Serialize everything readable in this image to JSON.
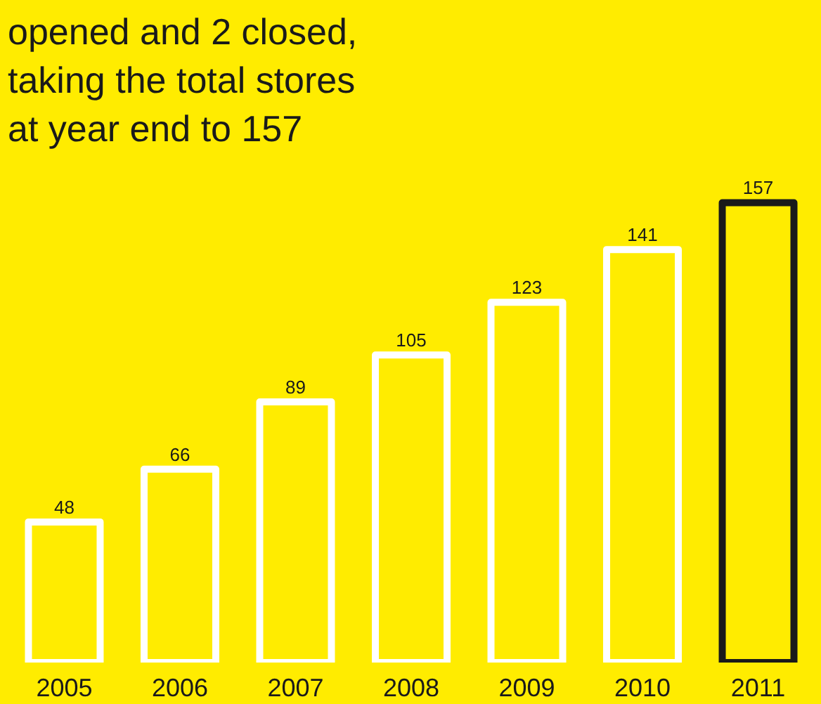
{
  "chart_data": {
    "type": "bar",
    "title": "opened and 2 closed, taking the total stores at year end to 157",
    "categories": [
      "2005",
      "2006",
      "2007",
      "2008",
      "2009",
      "2010",
      "2011"
    ],
    "values": [
      48,
      66,
      89,
      105,
      123,
      141,
      157
    ],
    "colors": [
      "#ffffff",
      "#ffffff",
      "#ffffff",
      "#ffffff",
      "#ffffff",
      "#ffffff",
      "#1a1a1a"
    ],
    "data_labels": true,
    "grid": false
  }
}
